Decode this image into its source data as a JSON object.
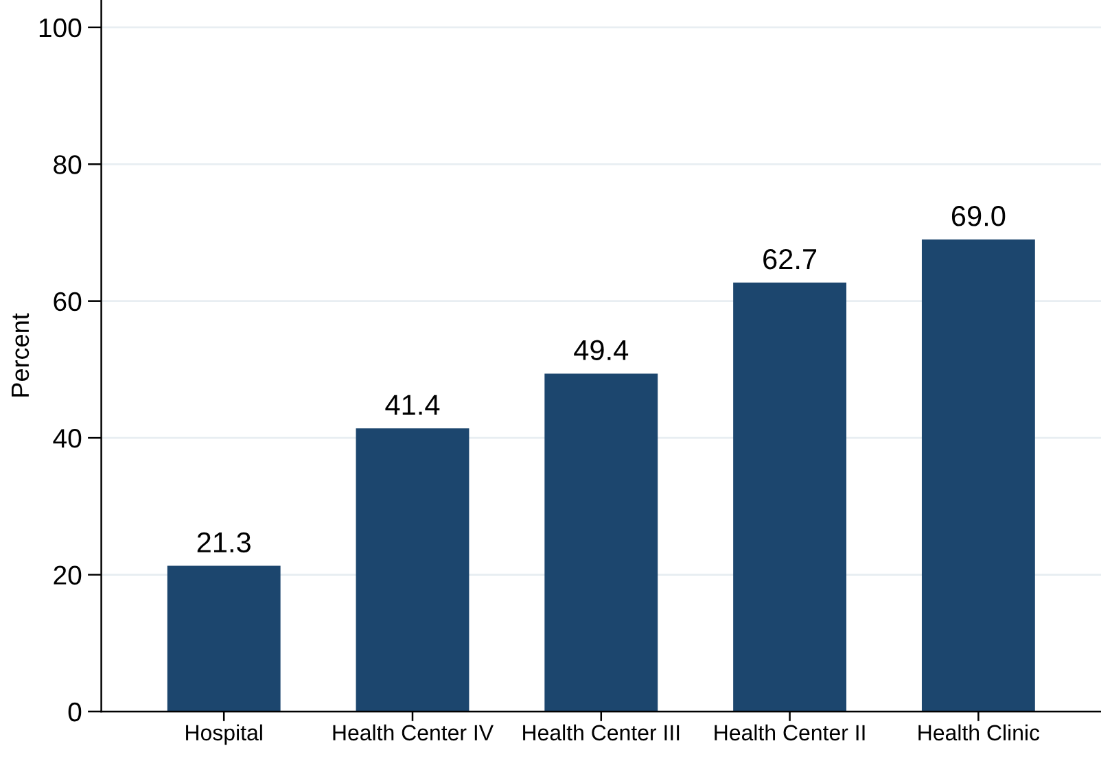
{
  "chart_data": {
    "type": "bar",
    "ylabel": "Percent",
    "categories": [
      "Hospital",
      "Health Center IV",
      "Health Center III",
      "Health Center II",
      "Health Clinic"
    ],
    "values": [
      21.3,
      41.4,
      49.4,
      62.7,
      69.0
    ],
    "value_labels": [
      "21.3",
      "41.4",
      "49.4",
      "62.7",
      "69.0"
    ],
    "color": "#1c466e",
    "ylim": [
      0,
      104
    ],
    "yticks": [
      0,
      20,
      40,
      60,
      80,
      100
    ],
    "grid": "y"
  }
}
